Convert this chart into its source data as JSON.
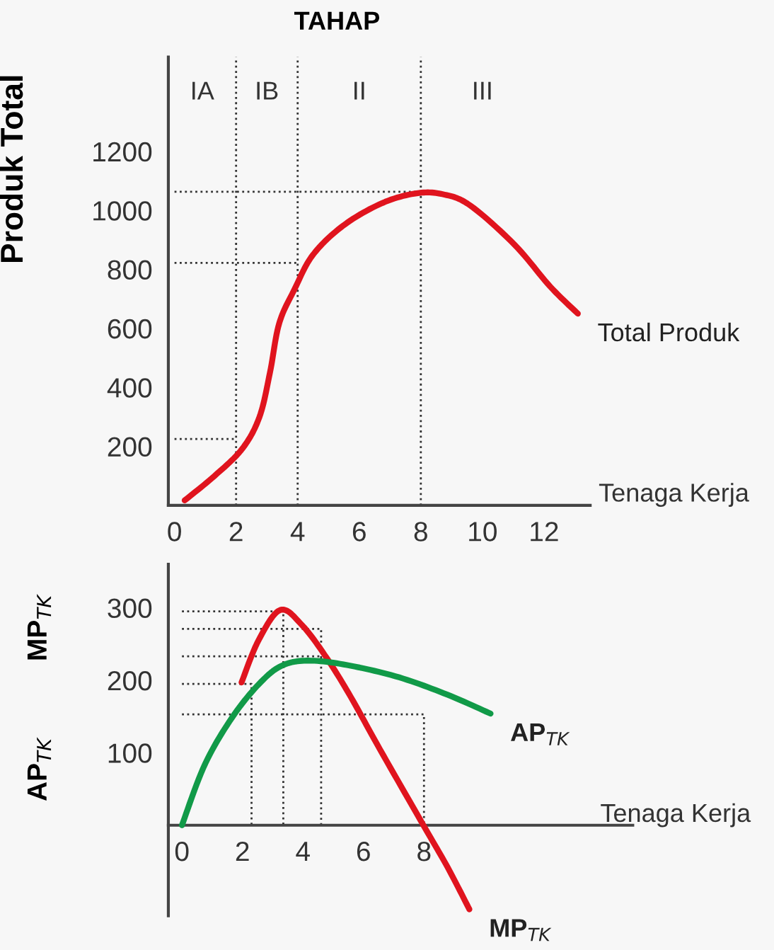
{
  "chart_data": [
    {
      "type": "line",
      "title": "TAHAP",
      "xlabel": "Tenaga Kerja",
      "ylabel": "Produk Total",
      "xlim": [
        -0.2,
        13.5
      ],
      "ylim": [
        0,
        1520
      ],
      "xticks": [
        0,
        2,
        4,
        6,
        8,
        10,
        12
      ],
      "yticks": [
        200,
        400,
        600,
        800,
        1000,
        1200
      ],
      "grid": false,
      "legend": false,
      "ref_lines": [
        {
          "axis": "x",
          "value": 2,
          "color": "#333333",
          "line_style": "dotted"
        },
        {
          "axis": "x",
          "value": 4,
          "color": "#333333",
          "line_style": "dotted"
        },
        {
          "axis": "x",
          "value": 8,
          "color": "#333333",
          "line_style": "dotted"
        }
      ],
      "annotations": [
        "IA",
        "IB",
        "II",
        "III"
      ],
      "series": [
        {
          "name": "Total Produk",
          "color": "#e0141e",
          "line_style": "solid",
          "x": [
            0.33,
            1.3,
            2.2,
            2.76,
            3.1,
            3.4,
            3.9,
            4.5,
            5.5,
            6.75,
            7.86,
            8.7,
            9.6,
            11.05,
            12.2,
            13.1
          ],
          "values": [
            17,
            100,
            192,
            300,
            450,
            617,
            733,
            850,
            950,
            1025,
            1058,
            1055,
            1017,
            883,
            742,
            650
          ]
        },
        {
          "color": "#333333",
          "line_style": "dotted",
          "x": [
            0,
            2
          ],
          "values": [
            225,
            225
          ]
        },
        {
          "color": "#333333",
          "line_style": "dotted",
          "x": [
            0,
            4
          ],
          "values": [
            822,
            822
          ]
        },
        {
          "color": "#333333",
          "line_style": "dotted",
          "x": [
            0,
            8
          ],
          "values": [
            1063,
            1063
          ]
        }
      ]
    },
    {
      "type": "line",
      "xlabel": "Tenaga Kerja",
      "ylabel": "AP$_{TK}$          MP$_{TK}$",
      "xlim": [
        -0.45,
        14.9
      ],
      "ylim": [
        -125,
        360
      ],
      "xticks": [
        0,
        2,
        4,
        6,
        8
      ],
      "yticks": [
        100,
        200,
        300
      ],
      "grid": false,
      "legend": false,
      "series": [
        {
          "name": "MP$_{TK}$",
          "color": "#e0141e",
          "line_style": "solid",
          "x": [
            1.97,
            2.53,
            3.25,
            3.97,
            4.78,
            5.58,
            6.54,
            7.98,
            8.78,
            9.5
          ],
          "values": [
            197,
            255,
            297,
            276,
            231,
            177,
            105,
            0,
            -58,
            -116
          ]
        },
        {
          "name": "AP$_{TK}$",
          "color": "#119a48",
          "line_style": "solid",
          "x": [
            0,
            0.77,
            1.73,
            2.69,
            3.41,
            4.29,
            5.58,
            7.18,
            8.78,
            10.2
          ],
          "values": [
            0,
            85,
            153,
            201,
            222,
            227,
            220,
            204,
            180,
            154
          ]
        },
        {
          "color": "#333333",
          "line_style": "dotted",
          "x": [
            0,
            2.3,
            2.3
          ],
          "values": [
            195,
            195,
            0
          ]
        },
        {
          "color": "#333333",
          "line_style": "dotted",
          "x": [
            0,
            3.35,
            3.35
          ],
          "values": [
            295,
            295,
            0
          ]
        },
        {
          "color": "#333333",
          "line_style": "dotted",
          "x": [
            0,
            4.6,
            4.6
          ],
          "values": [
            271,
            271,
            0
          ]
        },
        {
          "color": "#333333",
          "line_style": "dotted",
          "x": [
            0,
            4.6
          ],
          "values": [
            233,
            233
          ]
        },
        {
          "color": "#333333",
          "line_style": "dotted",
          "x": [
            0,
            8,
            8
          ],
          "values": [
            153,
            153,
            0
          ]
        }
      ]
    }
  ]
}
